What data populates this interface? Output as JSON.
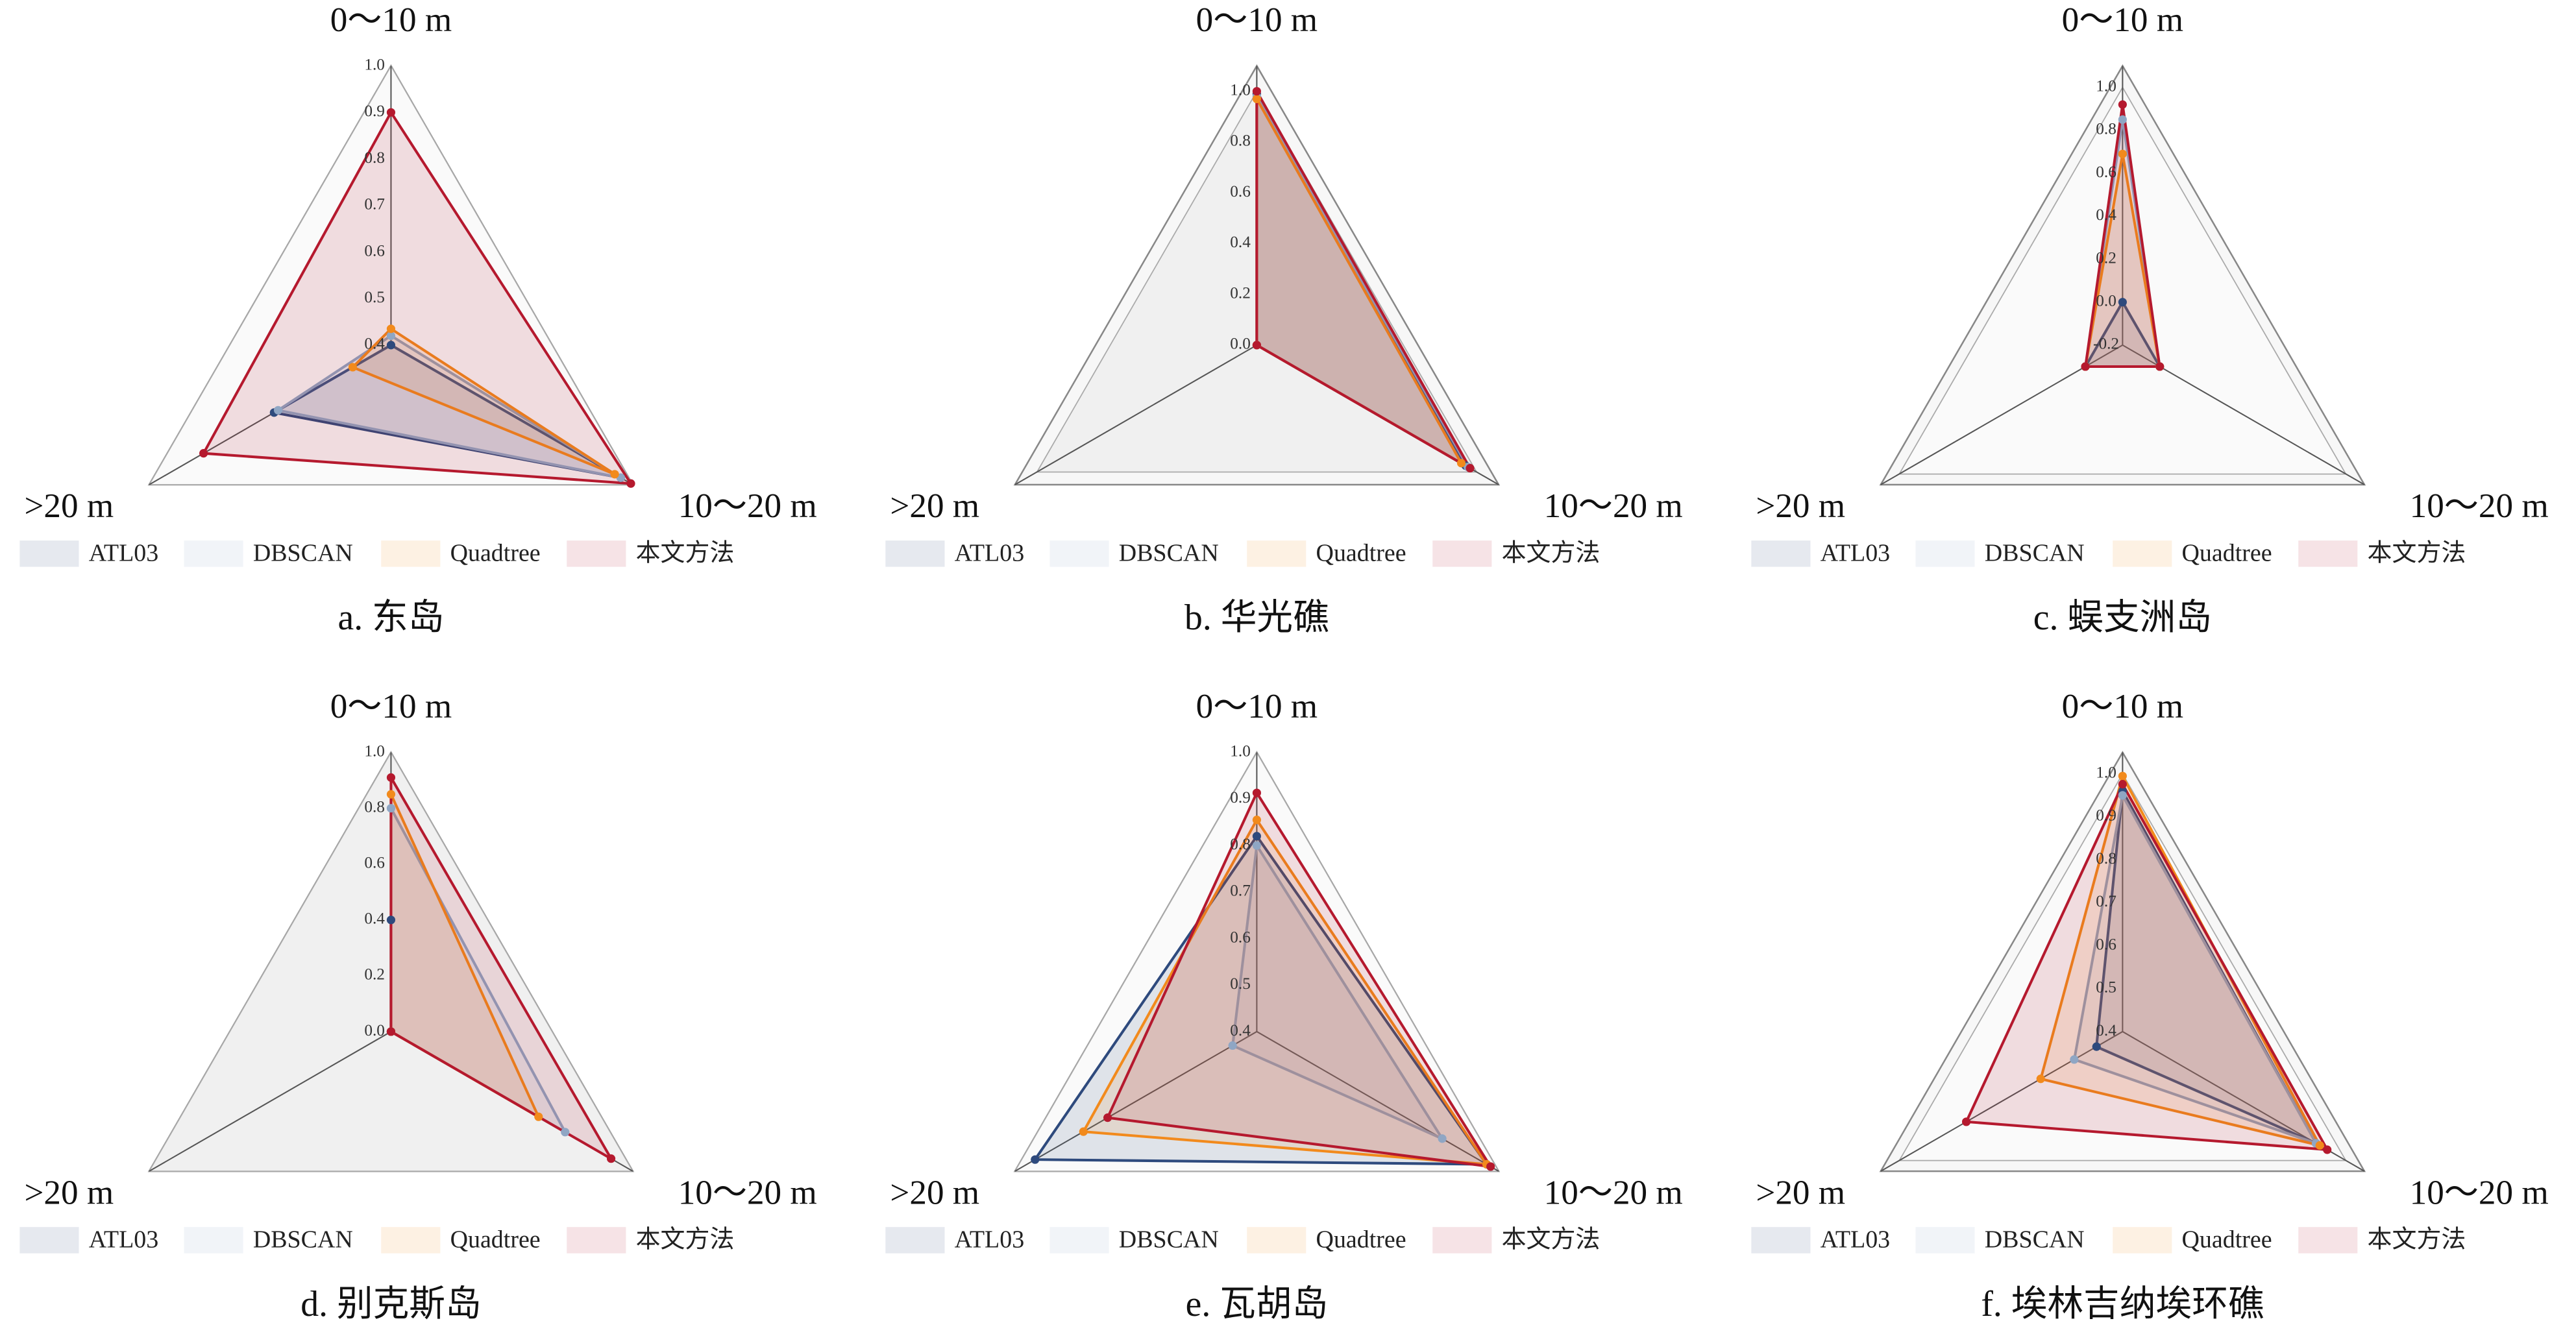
{
  "chart_data": [
    {
      "type": "radar",
      "caption": "a. 东岛",
      "axes": [
        "0～10 m",
        "10～20 m",
        ">20 m"
      ],
      "rlim": [
        0.4,
        1.0
      ],
      "rticks": [
        0.4,
        0.5,
        0.6,
        0.7,
        0.8,
        0.9,
        {
          "value": 1,
          "label": "1.0"
        }
      ],
      "series": [
        {
          "name": "ATL03",
          "color": "#2e4a7d",
          "values": [
            0.4,
            0.97,
            0.69
          ]
        },
        {
          "name": "DBSCAN",
          "color": "#8fa6c4",
          "values": [
            0.42,
            0.97,
            0.68
          ]
        },
        {
          "name": "Quadtree",
          "color": "#f28a1c",
          "values": [
            0.435,
            0.955,
            0.495
          ]
        },
        {
          "name": "本文方法",
          "color": "#b5192e",
          "values": [
            0.9,
            0.995,
            0.865
          ]
        }
      ]
    },
    {
      "type": "radar",
      "caption": "b. 华光礁",
      "axes": [
        "0～10 m",
        "10～20 m",
        ">20 m"
      ],
      "rlim": [
        0,
        1.1
      ],
      "rticks": [
        {
          "value": 0,
          "label": "0.0"
        },
        0.2,
        0.4,
        0.6,
        0.8,
        {
          "value": 1,
          "label": "1.0"
        }
      ],
      "series": [
        {
          "name": "ATL03",
          "color": "#2e4a7d",
          "values": [
            0.99,
            0.95,
            0
          ]
        },
        {
          "name": "DBSCAN",
          "color": "#8fa6c4",
          "values": [
            0.98,
            0.96,
            0
          ]
        },
        {
          "name": "Quadtree",
          "color": "#f28a1c",
          "values": [
            0.97,
            0.93,
            0
          ]
        },
        {
          "name": "本文方法",
          "color": "#b5192e",
          "values": [
            1.0,
            0.97,
            0
          ]
        }
      ]
    },
    {
      "type": "radar",
      "caption": "c. 蜈支洲岛",
      "axes": [
        "0～10 m",
        "10～20 m",
        ">20 m"
      ],
      "rlim": [
        -0.2,
        1.1
      ],
      "rticks": [
        -0.2,
        {
          "value": 0,
          "label": "0.0"
        },
        0.2,
        0.4,
        0.6,
        0.8,
        {
          "value": 1,
          "label": "1.0"
        }
      ],
      "series": [
        {
          "name": "ATL03",
          "color": "#2e4a7d",
          "values": [
            0.0,
            0.0,
            0.0
          ]
        },
        {
          "name": "DBSCAN",
          "color": "#8fa6c4",
          "values": [
            0.85,
            0.0,
            0.0
          ]
        },
        {
          "name": "Quadtree",
          "color": "#f28a1c",
          "values": [
            0.69,
            0.0,
            0.0
          ]
        },
        {
          "name": "本文方法",
          "color": "#b5192e",
          "values": [
            0.92,
            0.0,
            0.0
          ]
        }
      ]
    },
    {
      "type": "radar",
      "caption": "d. 别克斯岛",
      "axes": [
        "0～10 m",
        "10～20 m",
        ">20 m"
      ],
      "rlim": [
        0,
        1.0
      ],
      "rticks": [
        {
          "value": 0,
          "label": "0.0"
        },
        0.2,
        0.4,
        0.6,
        0.8,
        {
          "value": 1,
          "label": "1.0"
        }
      ],
      "series": [
        {
          "name": "ATL03",
          "color": "#2e4a7d",
          "values": [
            0.4,
            0.0,
            0
          ]
        },
        {
          "name": "DBSCAN",
          "color": "#8fa6c4",
          "values": [
            0.8,
            0.72,
            0
          ]
        },
        {
          "name": "Quadtree",
          "color": "#f28a1c",
          "values": [
            0.85,
            0.61,
            0
          ]
        },
        {
          "name": "本文方法",
          "color": "#b5192e",
          "values": [
            0.91,
            0.91,
            0
          ]
        }
      ]
    },
    {
      "type": "radar",
      "caption": "e. 瓦胡岛",
      "axes": [
        "0～10 m",
        "10～20 m",
        ">20 m"
      ],
      "rlim": [
        0.4,
        1.0
      ],
      "rticks": [
        0.4,
        0.5,
        0.6,
        0.7,
        0.8,
        0.9,
        {
          "value": 1,
          "label": "1.0"
        }
      ],
      "series": [
        {
          "name": "ATL03",
          "color": "#2e4a7d",
          "values": [
            0.82,
            0.97,
            0.95
          ]
        },
        {
          "name": "DBSCAN",
          "color": "#8fa6c4",
          "values": [
            0.8,
            0.86,
            0.46
          ]
        },
        {
          "name": "Quadtree",
          "color": "#f28a1c",
          "values": [
            0.855,
            0.97,
            0.83
          ]
        },
        {
          "name": "本文方法",
          "color": "#b5192e",
          "values": [
            0.913,
            0.98,
            0.77
          ]
        }
      ]
    },
    {
      "type": "radar",
      "caption": "f. 埃林吉纳埃环礁",
      "axes": [
        "0～10 m",
        "10～20 m",
        ">20 m"
      ],
      "rlim": [
        0.4,
        1.05
      ],
      "rticks": [
        0.4,
        0.5,
        0.6,
        0.7,
        0.8,
        0.9,
        {
          "value": 1,
          "label": "1.0"
        }
      ],
      "series": [
        {
          "name": "ATL03",
          "color": "#2e4a7d",
          "values": [
            0.96,
            0.92,
            0.47
          ]
        },
        {
          "name": "DBSCAN",
          "color": "#8fa6c4",
          "values": [
            0.95,
            0.92,
            0.53
          ]
        },
        {
          "name": "Quadtree",
          "color": "#f28a1c",
          "values": [
            0.995,
            0.93,
            0.62
          ]
        },
        {
          "name": "本文方法",
          "color": "#b5192e",
          "values": [
            0.976,
            0.95,
            0.82
          ]
        }
      ]
    }
  ]
}
